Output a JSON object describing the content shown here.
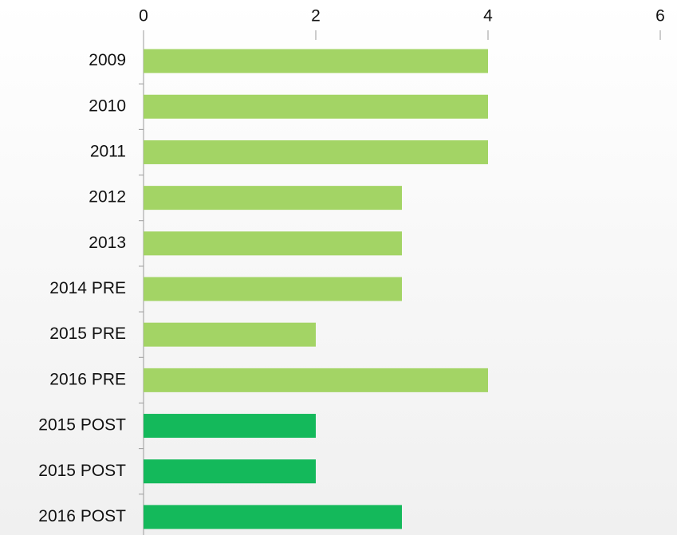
{
  "chart_data": {
    "type": "bar",
    "orientation": "horizontal",
    "categories": [
      "2009",
      "2010",
      "2011",
      "2012",
      "2013",
      "2014 PRE",
      "2015 PRE",
      "2016 PRE",
      "2015 POST",
      "2015 POST",
      "2016 POST"
    ],
    "values": [
      4,
      4,
      4,
      3,
      3,
      3,
      2,
      4,
      2,
      2,
      3
    ],
    "colors": [
      "#a3d465",
      "#a3d465",
      "#a3d465",
      "#a3d465",
      "#a3d465",
      "#a3d465",
      "#a3d465",
      "#a3d465",
      "#14b95b",
      "#14b95b",
      "#14b95b"
    ],
    "xlim": [
      0,
      6
    ],
    "xticks": [
      0,
      2,
      4,
      6
    ],
    "grid": false
  }
}
